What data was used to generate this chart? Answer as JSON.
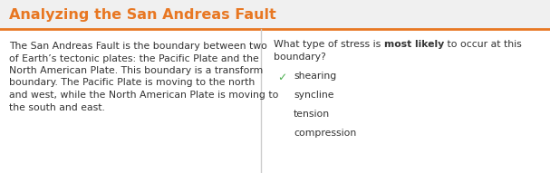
{
  "title": "Analyzing the San Andreas Fault",
  "title_color": "#e87722",
  "title_fontsize": 11.5,
  "background_color": "#ffffff",
  "header_bg_color": "#f0f0f0",
  "header_border_color": "#e87722",
  "body_text_lines": [
    "The San Andreas Fault is the boundary between two",
    "of Earth’s tectonic plates: the Pacific Plate and the",
    "North American Plate. This boundary is a transform",
    "boundary. The Pacific Plate is moving to the north",
    "and west, while the North American Plate is moving to",
    "the south and east."
  ],
  "body_text_color": "#333333",
  "body_fontsize": 7.8,
  "question_prefix": "What type of stress is ",
  "question_bold": "most likely",
  "question_suffix": " to occur at this",
  "question_line2": "boundary?",
  "question_color": "#333333",
  "question_fontsize": 7.8,
  "options": [
    "shearing",
    "syncline",
    "tension",
    "compression"
  ],
  "correct_option": 0,
  "check_color": "#4caf50",
  "option_color": "#333333",
  "option_fontsize": 7.8,
  "fig_width": 6.07,
  "fig_height": 1.91,
  "dpi": 100
}
